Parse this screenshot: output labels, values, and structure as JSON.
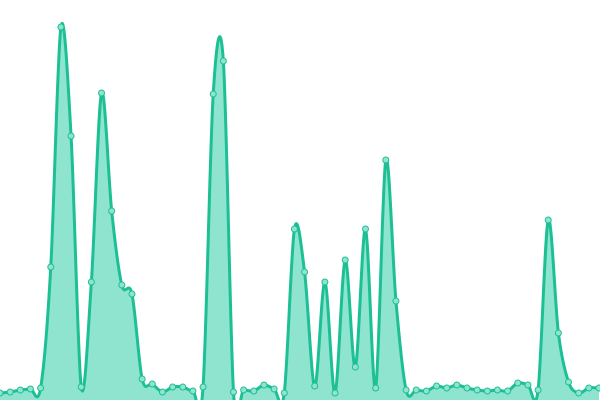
{
  "chart_data": {
    "type": "area",
    "values": [
      7,
      8,
      10,
      11,
      12,
      133,
      373,
      264,
      13,
      118,
      307,
      189,
      115,
      106,
      21,
      16,
      8,
      13,
      13,
      9,
      13,
      306,
      339,
      8,
      10,
      9,
      15,
      11,
      7,
      171,
      128,
      14,
      118,
      7,
      140,
      33,
      171,
      12,
      240,
      99,
      10,
      10,
      9,
      14,
      12,
      15,
      12,
      10,
      9,
      10,
      9,
      17,
      15,
      10,
      180,
      67,
      18,
      7,
      12,
      12
    ],
    "ylim": [
      0,
      400
    ],
    "color": "#1dbf94",
    "fill": "#8ee4cf",
    "point_fill": "#8ee4cf"
  }
}
